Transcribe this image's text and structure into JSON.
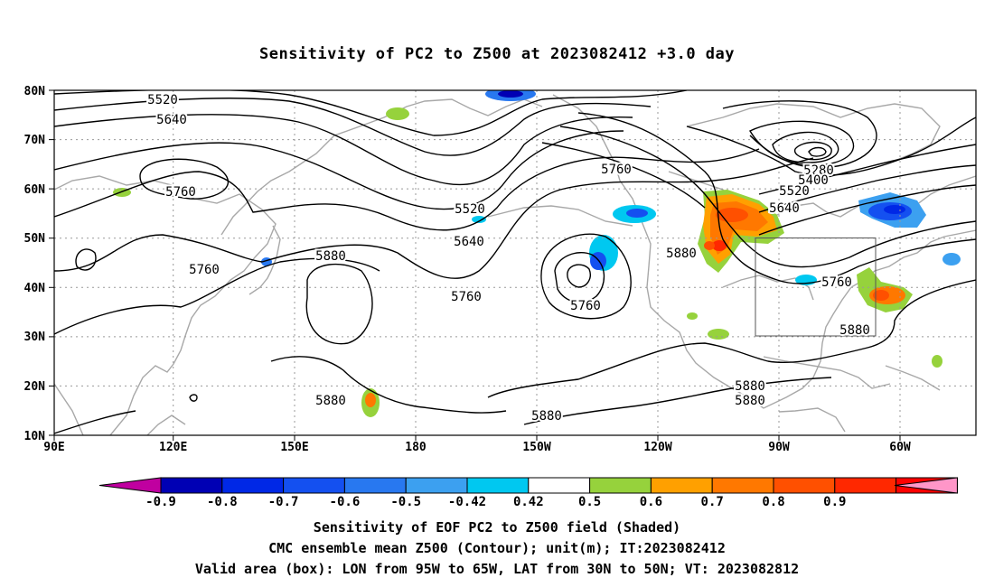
{
  "title": "Sensitivity of PC2 to Z500 at 2023082412 +3.0 day",
  "lat_labels": [
    "80N",
    "70N",
    "60N",
    "50N",
    "40N",
    "30N",
    "20N",
    "10N"
  ],
  "lon_labels": [
    "90E",
    "120E",
    "150E",
    "180",
    "150W",
    "120W",
    "90W",
    "60W"
  ],
  "contour_labels": {
    "l1": "5520",
    "l2": "5640",
    "l3": "5760",
    "l4": "5760",
    "l5": "5880",
    "l6": "5520",
    "l7": "5640",
    "l8": "5760",
    "l9": "5760",
    "l10": "5880",
    "l11": "5880",
    "l12": "5760",
    "l13": "5280",
    "l14": "5400",
    "l15": "5520",
    "l16": "5640",
    "l17": "5760",
    "l18": "5880",
    "l19": "5880",
    "l20": "5880",
    "l21": "5880"
  },
  "colorbar": {
    "labels": [
      "-0.9",
      "-0.8",
      "-0.7",
      "-0.6",
      "-0.5",
      "-0.42",
      "0.42",
      "0.5",
      "0.6",
      "0.7",
      "0.8",
      "0.9"
    ],
    "colors": [
      "#c000a0",
      "#0000b4",
      "#0028e6",
      "#1450f0",
      "#2878f0",
      "#3ca0f0",
      "#00c8f0",
      "#ffffff",
      "#96d23c",
      "#ffa000",
      "#ff7800",
      "#ff5000",
      "#ff2800",
      "#ff0000",
      "#ff96c8"
    ]
  },
  "caption": {
    "line1": "Sensitivity of EOF PC2 to Z500 field (Shaded)",
    "line2": "CMC ensemble mean Z500 (Contour); unit(m); IT:2023082412",
    "line3": "Valid area (box): LON from 95W to 65W, LAT from 30N to 50N; VT: 2023082812"
  }
}
